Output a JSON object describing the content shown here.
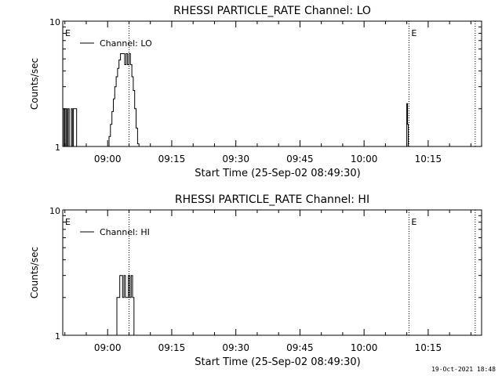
{
  "footer": {
    "timestamp": "19-Oct-2021 18:48"
  },
  "chart_data": [
    {
      "type": "line",
      "title": "RHESSI PARTICLE_RATE Channel: LO",
      "xlabel": "Start Time (25-Sep-02 08:49:30)",
      "ylabel": "Counts/sec",
      "yscale": "log",
      "ylim": [
        1,
        10
      ],
      "xlim": [
        "08:49:30",
        "10:27:30"
      ],
      "xticks": [
        "09:00",
        "09:15",
        "09:30",
        "09:45",
        "10:00",
        "10:15"
      ],
      "yticks": [
        "1",
        "10"
      ],
      "legend": {
        "position": "top-left",
        "entries": [
          "Channel: LO"
        ]
      },
      "markers": [
        {
          "time": "08:49:30",
          "label": "E"
        },
        {
          "time": "09:05:00",
          "label": ""
        },
        {
          "time": "10:10:30",
          "label": "E"
        },
        {
          "time": "10:26:00",
          "label": ""
        }
      ],
      "series": [
        {
          "name": "Channel: LO",
          "x": [
            "08:49:30",
            "08:49:45",
            "08:50:00",
            "08:50:15",
            "08:50:30",
            "08:50:45",
            "08:51:00",
            "08:51:15",
            "08:51:30",
            "08:51:45",
            "08:52:00",
            "08:52:15",
            "08:52:30",
            "08:52:45",
            "08:53:00",
            "08:53:15",
            "08:58:00",
            "09:00:00",
            "09:00:20",
            "09:00:40",
            "09:01:00",
            "09:01:20",
            "09:01:40",
            "09:02:00",
            "09:02:20",
            "09:02:40",
            "09:03:00",
            "09:03:20",
            "09:03:40",
            "09:04:00",
            "09:04:20",
            "09:04:40",
            "09:05:00",
            "09:05:20",
            "09:05:40",
            "09:06:00",
            "09:06:20",
            "09:06:40",
            "09:07:00",
            "09:07:20",
            "09:07:40",
            "09:08:00",
            "10:09:50",
            "10:10:00",
            "10:10:10",
            "10:10:20"
          ],
          "y": [
            1,
            2,
            1,
            2,
            1,
            2,
            1,
            1,
            2,
            1,
            2,
            2,
            2,
            1,
            1,
            1,
            1,
            1,
            1.2,
            1.5,
            1.9,
            2.4,
            3,
            3.6,
            4.2,
            4.9,
            5.5,
            5.5,
            5.5,
            4.5,
            5.5,
            4.5,
            5.5,
            4.5,
            3.6,
            2.8,
            2,
            1.4,
            1.05,
            1,
            1,
            1,
            1,
            2.2,
            1.5,
            1
          ]
        }
      ]
    },
    {
      "type": "line",
      "title": "RHESSI PARTICLE_RATE Channel: HI",
      "xlabel": "Start Time (25-Sep-02 08:49:30)",
      "ylabel": "Counts/sec",
      "yscale": "log",
      "ylim": [
        1,
        10
      ],
      "xlim": [
        "08:49:30",
        "10:27:30"
      ],
      "xticks": [
        "09:00",
        "09:15",
        "09:30",
        "09:45",
        "10:00",
        "10:15"
      ],
      "yticks": [
        "1",
        "10"
      ],
      "legend": {
        "position": "top-left",
        "entries": [
          "Channel: HI"
        ]
      },
      "markers": [
        {
          "time": "08:49:30",
          "label": "E"
        },
        {
          "time": "09:05:00",
          "label": ""
        },
        {
          "time": "10:10:30",
          "label": "E"
        },
        {
          "time": "10:26:00",
          "label": ""
        }
      ],
      "series": [
        {
          "name": "Channel: HI",
          "x": [
            "09:01:30",
            "09:01:50",
            "09:02:10",
            "09:02:30",
            "09:02:50",
            "09:03:10",
            "09:03:30",
            "09:03:50",
            "09:04:10",
            "09:04:30",
            "09:04:50",
            "09:05:10",
            "09:05:30",
            "09:05:50",
            "09:06:10",
            "09:06:30"
          ],
          "y": [
            1,
            1,
            2,
            2,
            3,
            3,
            2,
            3,
            2,
            2,
            3,
            2,
            3,
            2,
            1,
            1
          ]
        }
      ]
    }
  ]
}
